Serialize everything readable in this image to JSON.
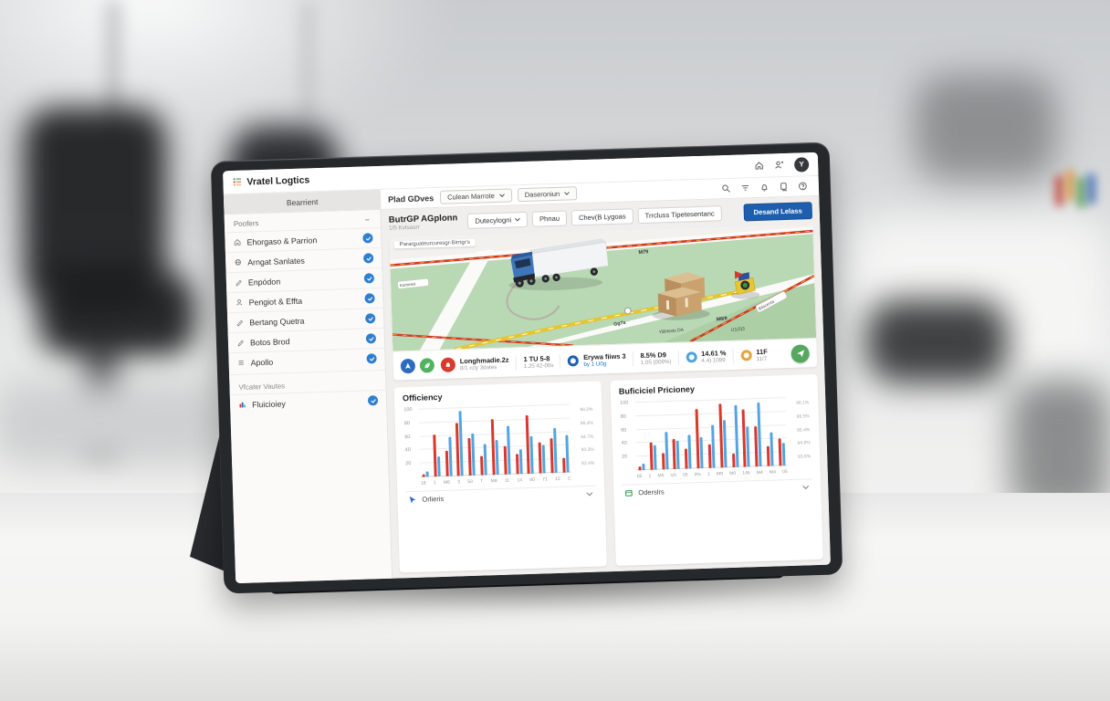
{
  "topbar": {
    "brand": "Vratel Logtics",
    "icons": [
      "home-icon",
      "share-person-icon"
    ],
    "avatar_initial": "Y"
  },
  "header": {
    "active_tab": "Bearrient",
    "section_label": "Plad GDves",
    "dropdowns": [
      {
        "label": "Culean Marrote"
      },
      {
        "label": "Daseroniun"
      }
    ],
    "icons": [
      "search-icon",
      "filter-icon",
      "bell-icon",
      "copy-icon",
      "help-icon"
    ]
  },
  "sidebar": {
    "header": "Poofers",
    "items": [
      {
        "icon": "home-icon",
        "label": "Ehorgaso & Parrion",
        "checked": true
      },
      {
        "icon": "globe-icon",
        "label": "Arngat Sanlates",
        "checked": true
      },
      {
        "icon": "pen-icon",
        "label": "Enpódon",
        "checked": true
      },
      {
        "icon": "person-icon",
        "label": "Pengiot & Effta",
        "checked": true
      },
      {
        "icon": "pen-icon",
        "label": "Bertang Quetra",
        "checked": true
      },
      {
        "icon": "pen-icon",
        "label": "Botos Brod",
        "checked": true
      },
      {
        "icon": "menu-icon",
        "label": "Apollo",
        "checked": true
      }
    ],
    "section_label": "Vfcater Vautes",
    "master_items": [
      {
        "icon": "chart-grid-icon",
        "label": "Fluicioiey",
        "checked": true
      }
    ]
  },
  "toolbar": {
    "title": "ButrGP AGplonn",
    "subtitle": "1/5 Kvtsasrr",
    "buttons": [
      {
        "label": "Dutecylogni",
        "dropdown": true
      },
      {
        "label": "Phnau"
      },
      {
        "label": "Chev(B Lygoas"
      },
      {
        "label": "Trrcluss Tipetesentanc"
      }
    ],
    "primary_button": "Desand Lelass"
  },
  "map": {
    "top_label": "Pararguateurcuresgr-Birrigr's",
    "labels": {
      "m79": "M79",
      "road_left": "Kamensi",
      "gg7a": "Gg7a",
      "ybh": "YBHssts DA",
      "m89": "M8/9",
      "u103": "U1(0)3",
      "road_right": "Bilacenta"
    }
  },
  "statusbar": {
    "quick_icons": [
      {
        "icon": "nav-icon",
        "color": "#2d6bbf"
      },
      {
        "icon": "leaf-icon",
        "color": "#52b35e"
      }
    ],
    "segments": [
      {
        "icon": "bell-badge-icon",
        "icon_color": "#d93a2b",
        "title": "Longhmadie.2z",
        "subtitle": "8/1 rcly 3dates"
      },
      {
        "title": "1 TU 5-8",
        "subtitle": "1.25 42-00s"
      },
      {
        "icon": "ring-icon",
        "icon_color": "#1d5fae",
        "title": "Erywa fiiws 3",
        "subtitle": "by 1 U0g",
        "subtitle_color": "#1d6fd1"
      },
      {
        "title": "8.5% D9",
        "subtitle": "1.05 (009%)"
      },
      {
        "icon": "ring-icon",
        "icon_color": "#4da3dd",
        "title": "14.61 %",
        "subtitle": "4.4) 1099"
      },
      {
        "icon": "ring-icon",
        "icon_color": "#e8a33d",
        "title": "11F",
        "subtitle": "11/7"
      }
    ],
    "send_button": {
      "icon": "plane-icon",
      "color": "#56a85f"
    }
  },
  "chart_data": [
    {
      "type": "bar",
      "title": "Officiency",
      "legend": "Orlieris",
      "legend_icon": "cursor-icon",
      "categories": [
        "18",
        "1",
        "M6",
        "3",
        "50",
        "T",
        "M8",
        "11",
        "14",
        "80",
        "71",
        "15",
        "C"
      ],
      "series": [
        {
          "name": "series-red",
          "color": "#d8392c",
          "values": [
            4,
            62,
            38,
            78,
            55,
            28,
            82,
            42,
            30,
            86,
            46,
            52,
            22
          ]
        },
        {
          "name": "series-blue",
          "color": "#55a4e0",
          "values": [
            8,
            30,
            58,
            96,
            62,
            46,
            52,
            72,
            36,
            56,
            42,
            66,
            56
          ]
        }
      ],
      "ylim": [
        0,
        100
      ],
      "yticks": [
        "100",
        "80",
        "60",
        "40",
        "20"
      ],
      "right_labels": [
        "98.2%",
        "96.4%",
        "94.7%",
        "93.3%",
        "92.4%"
      ],
      "grid": true,
      "legend_position": "bottom-left"
    },
    {
      "type": "bar",
      "title": "Buficiciel Pricioney",
      "legend": "Oderslrs",
      "legend_icon": "box-icon",
      "categories": [
        "05",
        "1",
        "M5",
        "V0",
        "05",
        "0%",
        "1",
        "M9",
        "M0",
        "14b",
        "M4",
        "M4",
        "05"
      ],
      "series": [
        {
          "name": "series-red",
          "color": "#d8392c",
          "values": [
            5,
            40,
            25,
            45,
            30,
            88,
            35,
            95,
            20,
            85,
            60,
            30,
            40
          ]
        },
        {
          "name": "series-blue",
          "color": "#55a4e0",
          "values": [
            10,
            36,
            55,
            42,
            50,
            46,
            64,
            70,
            92,
            60,
            95,
            50,
            34
          ]
        }
      ],
      "ylim": [
        0,
        100
      ],
      "yticks": [
        "100",
        "80",
        "60",
        "40",
        "20"
      ],
      "right_labels": [
        "98.1%",
        "96.5%",
        "95.4%",
        "94.8%",
        "93.6%"
      ],
      "grid": true,
      "legend_position": "bottom-left"
    }
  ]
}
